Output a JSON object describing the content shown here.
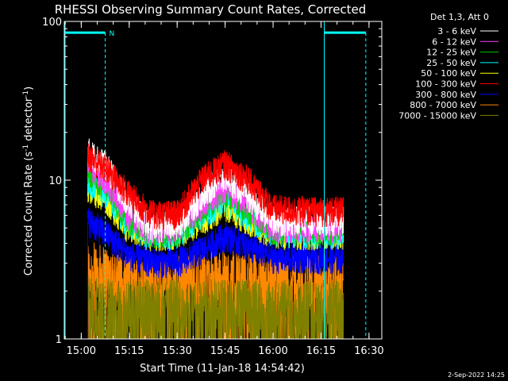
{
  "chart_data": {
    "type": "line",
    "title": "RHESSI Observing Summary Count Rates, Corrected",
    "xlabel": "Start Time (11-Jan-18 14:54:42)",
    "ylabel": "Corrected Count Rate (s",
    "ylabel_sup": "-1",
    "ylabel_mid": " detector",
    "ylabel_tail": ")",
    "xlim": [
      "14:54:42",
      "16:34:00"
    ],
    "ylim": [
      1,
      100
    ],
    "yscale": "log",
    "x_ticks": [
      "15:00",
      "15:15",
      "15:30",
      "15:45",
      "16:00",
      "16:15",
      "16:30"
    ],
    "y_ticks": [
      {
        "value": 1,
        "label": "1"
      },
      {
        "value": 10,
        "label": "10"
      },
      {
        "value": 100,
        "label": "100"
      }
    ],
    "legend_header": "Det 1,3, Att 0",
    "legend_position": "top-right",
    "data_span": [
      "15:02:00",
      "16:22:00"
    ],
    "series": [
      {
        "name": "3 - 6 keV",
        "color": "#ffffff",
        "pts": [
          [
            "15:02",
            15
          ],
          [
            "15:08",
            12
          ],
          [
            "15:15",
            7
          ],
          [
            "15:22",
            5
          ],
          [
            "15:30",
            5.2
          ],
          [
            "15:38",
            8
          ],
          [
            "15:45",
            10.5
          ],
          [
            "15:52",
            8
          ],
          [
            "16:00",
            5.5
          ],
          [
            "16:10",
            5.5
          ],
          [
            "16:20",
            5.5
          ],
          [
            "16:22",
            5.5
          ]
        ]
      },
      {
        "name": "6 - 12 keV",
        "color": "#ff40ff",
        "pts": [
          [
            "15:02",
            12
          ],
          [
            "15:08",
            10
          ],
          [
            "15:15",
            6
          ],
          [
            "15:22",
            4.8
          ],
          [
            "15:30",
            4.9
          ],
          [
            "15:38",
            7
          ],
          [
            "15:45",
            9
          ],
          [
            "15:52",
            7
          ],
          [
            "16:00",
            5
          ],
          [
            "16:10",
            5
          ],
          [
            "16:20",
            5
          ],
          [
            "16:22",
            5
          ]
        ]
      },
      {
        "name": "12 - 25 keV",
        "color": "#00cc00",
        "pts": [
          [
            "15:02",
            11
          ],
          [
            "15:08",
            9
          ],
          [
            "15:15",
            5.5
          ],
          [
            "15:22",
            4.6
          ],
          [
            "15:30",
            4.7
          ],
          [
            "15:38",
            6.5
          ],
          [
            "15:45",
            8.5
          ],
          [
            "15:52",
            6.5
          ],
          [
            "16:00",
            4.8
          ],
          [
            "16:10",
            4.8
          ],
          [
            "16:20",
            4.8
          ],
          [
            "16:22",
            4.8
          ]
        ]
      },
      {
        "name": "25 - 50 keV",
        "color": "#00ffff",
        "pts": [
          [
            "15:02",
            10
          ],
          [
            "15:08",
            8
          ],
          [
            "15:15",
            5
          ],
          [
            "15:22",
            4.5
          ],
          [
            "15:30",
            4.6
          ],
          [
            "15:38",
            6
          ],
          [
            "15:45",
            7.5
          ],
          [
            "15:52",
            6
          ],
          [
            "16:00",
            4.6
          ],
          [
            "16:10",
            4.6
          ],
          [
            "16:20",
            4.6
          ],
          [
            "16:22",
            4.6
          ]
        ]
      },
      {
        "name": "50 - 100 keV",
        "color": "#ffff00",
        "pts": [
          [
            "15:02",
            9
          ],
          [
            "15:08",
            7.5
          ],
          [
            "15:15",
            4.8
          ],
          [
            "15:22",
            4.4
          ],
          [
            "15:30",
            4.5
          ],
          [
            "15:38",
            5.6
          ],
          [
            "15:45",
            6.8
          ],
          [
            "15:52",
            5.6
          ],
          [
            "16:00",
            4.5
          ],
          [
            "16:10",
            4.5
          ],
          [
            "16:20",
            4.5
          ],
          [
            "16:22",
            4.5
          ]
        ]
      },
      {
        "name": "100 - 300 keV",
        "color": "#ff0000",
        "pts": [
          [
            "15:02",
            14
          ],
          [
            "15:08",
            11.5
          ],
          [
            "15:15",
            8
          ],
          [
            "15:22",
            6
          ],
          [
            "15:30",
            6
          ],
          [
            "15:38",
            10
          ],
          [
            "15:45",
            12.5
          ],
          [
            "15:52",
            10
          ],
          [
            "16:00",
            6.5
          ],
          [
            "16:10",
            6.3
          ],
          [
            "16:20",
            6.3
          ],
          [
            "16:22",
            6.3
          ]
        ]
      },
      {
        "name": "300 - 800 keV",
        "color": "#0000ff",
        "pts": [
          [
            "15:02",
            5.5
          ],
          [
            "15:08",
            4.5
          ],
          [
            "15:15",
            3.3
          ],
          [
            "15:22",
            3
          ],
          [
            "15:30",
            3
          ],
          [
            "15:38",
            3.6
          ],
          [
            "15:45",
            4.4
          ],
          [
            "15:52",
            3.8
          ],
          [
            "16:00",
            3.2
          ],
          [
            "16:10",
            3.2
          ],
          [
            "16:20",
            3.2
          ],
          [
            "16:22",
            3.2
          ]
        ]
      },
      {
        "name": "800 - 7000 keV",
        "color": "#ff8800",
        "pts": [
          [
            "15:02",
            2.6
          ],
          [
            "15:08",
            2.4
          ],
          [
            "15:15",
            2.2
          ],
          [
            "15:22",
            2.1
          ],
          [
            "15:30",
            2.1
          ],
          [
            "15:38",
            2.2
          ],
          [
            "15:45",
            2.3
          ],
          [
            "15:52",
            2.2
          ],
          [
            "16:00",
            2.1
          ],
          [
            "16:10",
            2.1
          ],
          [
            "16:20",
            2.1
          ],
          [
            "16:22",
            2.1
          ]
        ]
      },
      {
        "name": "7000 - 15000 keV",
        "color": "#808000",
        "pts": [
          [
            "15:02",
            1.6
          ],
          [
            "15:08",
            1.5
          ],
          [
            "15:15",
            1.5
          ],
          [
            "15:22",
            1.5
          ],
          [
            "15:30",
            1.5
          ],
          [
            "15:38",
            1.5
          ],
          [
            "15:45",
            1.5
          ],
          [
            "15:52",
            1.5
          ],
          [
            "16:00",
            1.5
          ],
          [
            "16:10",
            1.5
          ],
          [
            "16:20",
            1.5
          ],
          [
            "16:22",
            1.5
          ]
        ]
      }
    ],
    "annotations": [
      {
        "type": "night",
        "label": "N",
        "color": "#00ffff",
        "start": "14:54:42",
        "end": "15:07:30",
        "level": 85
      },
      {
        "type": "night",
        "label": "",
        "color": "#00ffff",
        "start": "16:16:00",
        "end": "16:29:00",
        "level": 85
      }
    ]
  },
  "footer": {
    "date": "2-Sep-2022 14:25"
  }
}
